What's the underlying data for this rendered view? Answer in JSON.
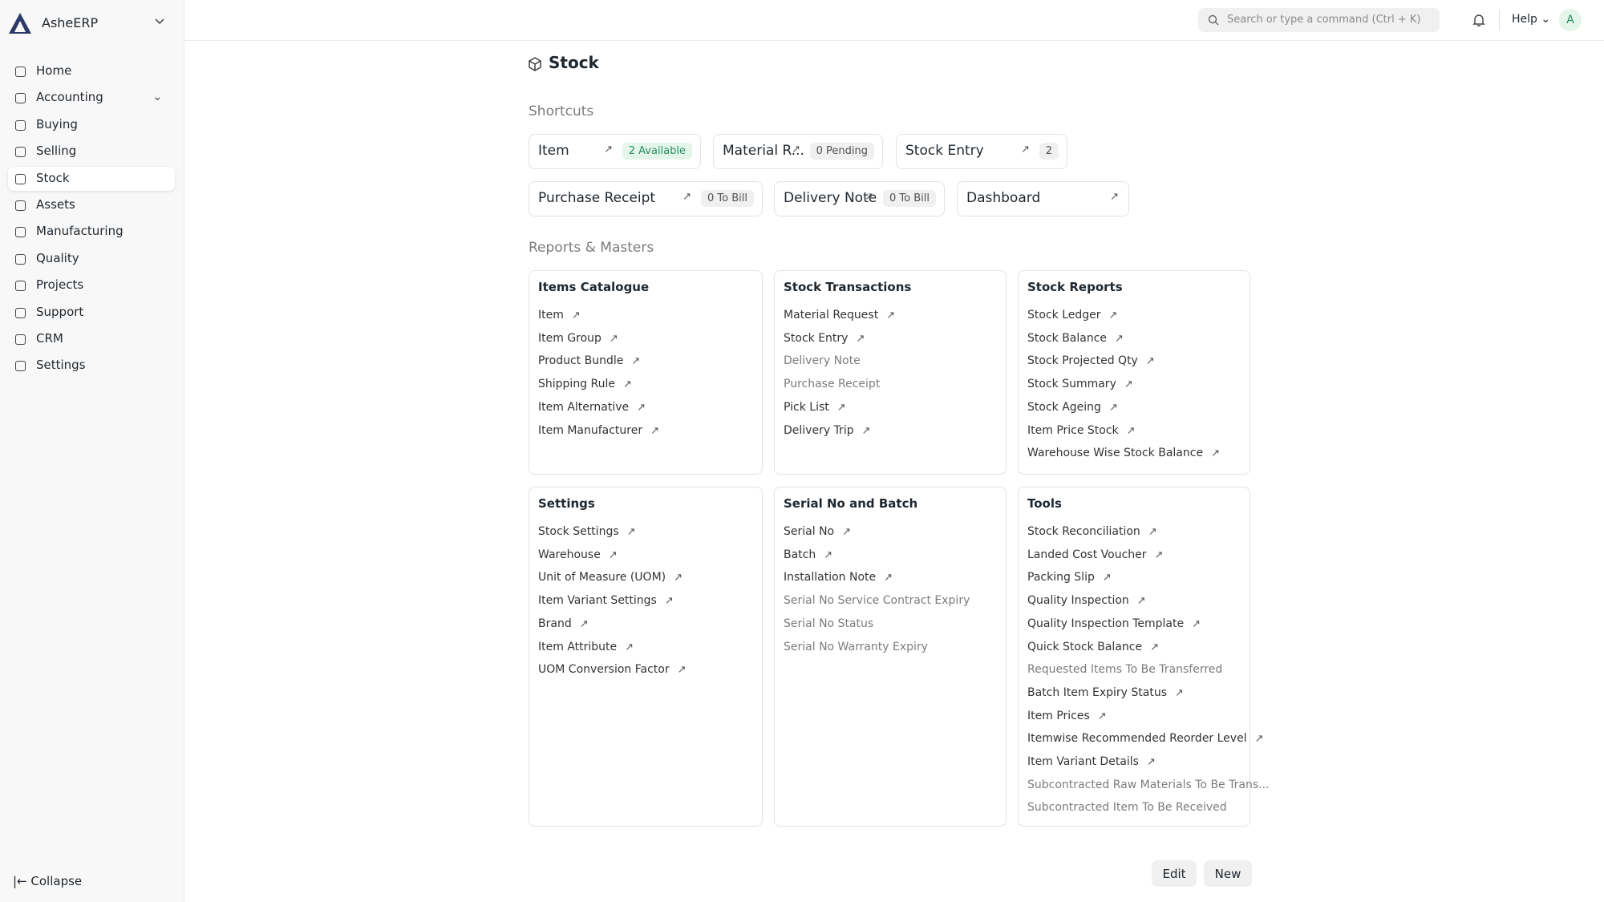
{
  "sidebar": {
    "brand": "AsheERP",
    "items": [
      "Home",
      "Accounting",
      "Buying",
      "Selling",
      "Stock",
      "Assets",
      "Manufacturing",
      "Quality",
      "Projects",
      "Support",
      "CRM",
      "Settings"
    ],
    "active_index": 4,
    "chevron_index": 1,
    "collapse": "Collapse"
  },
  "topbar": {
    "search": "Search or type a command (Ctrl + K)",
    "help": "Help",
    "avatar": "A"
  },
  "page": {
    "title": "Stock",
    "shortcuts_heading": "Shortcuts",
    "reports_heading": "Reports & Masters"
  },
  "shortcuts": [
    {
      "label": "Item",
      "badge": "2 Available",
      "tone": "green"
    },
    {
      "label": "Material R...",
      "badge": "0 Pending",
      "tone": "gray"
    },
    {
      "label": "Stock Entry",
      "badge": "2",
      "tone": "gray"
    },
    {
      "label": "Purchase Receipt",
      "badge": "0 To Bill",
      "tone": "gray"
    },
    {
      "label": "Delivery Note",
      "badge": "0 To Bill",
      "tone": "gray"
    },
    {
      "label": "Dashboard",
      "badge": null,
      "tone": "gray"
    }
  ],
  "cards": [
    {
      "title": "Items Catalogue",
      "links": [
        {
          "label": "Item",
          "arrow": true
        },
        {
          "label": "Item Group",
          "arrow": true
        },
        {
          "label": "Product Bundle",
          "arrow": true
        },
        {
          "label": "Shipping Rule",
          "arrow": true
        },
        {
          "label": "Item Alternative",
          "arrow": true
        },
        {
          "label": "Item Manufacturer",
          "arrow": true
        }
      ]
    },
    {
      "title": "Stock Transactions",
      "links": [
        {
          "label": "Material Request",
          "arrow": true
        },
        {
          "label": "Stock Entry",
          "arrow": true
        },
        {
          "label": "Delivery Note",
          "arrow": false
        },
        {
          "label": "Purchase Receipt",
          "arrow": false
        },
        {
          "label": "Pick List",
          "arrow": true
        },
        {
          "label": "Delivery Trip",
          "arrow": true
        }
      ]
    },
    {
      "title": "Stock Reports",
      "links": [
        {
          "label": "Stock Ledger",
          "arrow": true
        },
        {
          "label": "Stock Balance",
          "arrow": true
        },
        {
          "label": "Stock Projected Qty",
          "arrow": true
        },
        {
          "label": "Stock Summary",
          "arrow": true
        },
        {
          "label": "Stock Ageing",
          "arrow": true
        },
        {
          "label": "Item Price Stock",
          "arrow": true
        },
        {
          "label": "Warehouse Wise Stock Balance",
          "arrow": true
        }
      ]
    },
    {
      "title": "Settings",
      "links": [
        {
          "label": "Stock Settings",
          "arrow": true
        },
        {
          "label": "Warehouse",
          "arrow": true
        },
        {
          "label": "Unit of Measure (UOM)",
          "arrow": true
        },
        {
          "label": "Item Variant Settings",
          "arrow": true
        },
        {
          "label": "Brand",
          "arrow": true
        },
        {
          "label": "Item Attribute",
          "arrow": true
        },
        {
          "label": "UOM Conversion Factor",
          "arrow": true
        }
      ]
    },
    {
      "title": "Serial No and Batch",
      "links": [
        {
          "label": "Serial No",
          "arrow": true
        },
        {
          "label": "Batch",
          "arrow": true
        },
        {
          "label": "Installation Note",
          "arrow": true
        },
        {
          "label": "Serial No Service Contract Expiry",
          "arrow": false
        },
        {
          "label": "Serial No Status",
          "arrow": false
        },
        {
          "label": "Serial No Warranty Expiry",
          "arrow": false
        }
      ]
    },
    {
      "title": "Tools",
      "links": [
        {
          "label": "Stock Reconciliation",
          "arrow": true
        },
        {
          "label": "Landed Cost Voucher",
          "arrow": true
        },
        {
          "label": "Packing Slip",
          "arrow": true
        },
        {
          "label": "Quality Inspection",
          "arrow": true
        },
        {
          "label": "Quality Inspection Template",
          "arrow": true
        },
        {
          "label": "Quick Stock Balance",
          "arrow": true
        },
        {
          "label": "Requested Items To Be Transferred",
          "arrow": false
        },
        {
          "label": "Batch Item Expiry Status",
          "arrow": true
        },
        {
          "label": "Item Prices",
          "arrow": true
        },
        {
          "label": "Itemwise Recommended Reorder Level",
          "arrow": true
        },
        {
          "label": "Item Variant Details",
          "arrow": true
        },
        {
          "label": "Subcontracted Raw Materials To Be Trans...",
          "arrow": false
        },
        {
          "label": "Subcontracted Item To Be Received",
          "arrow": false
        }
      ]
    }
  ],
  "actions": {
    "edit": "Edit",
    "new": "New"
  }
}
